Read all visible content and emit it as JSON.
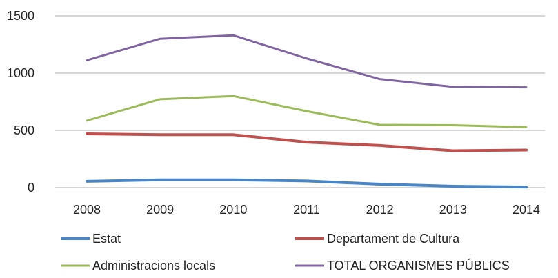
{
  "chart_data": {
    "type": "line",
    "categories": [
      "2008",
      "2009",
      "2010",
      "2011",
      "2012",
      "2013",
      "2014"
    ],
    "ylim": [
      0,
      1500
    ],
    "yticks": [
      "0",
      "500",
      "1000",
      "1500"
    ],
    "grid": true,
    "legend_position": "bottom",
    "series": [
      {
        "name": "Estat",
        "color": "#4a86c5",
        "values": [
          55,
          68,
          68,
          58,
          30,
          12,
          5
        ]
      },
      {
        "name": "Departament de Cultura",
        "color": "#c0504d",
        "values": [
          470,
          462,
          462,
          397,
          368,
          322,
          328
        ]
      },
      {
        "name": "Administracions locals",
        "color": "#9bbb59",
        "values": [
          585,
          772,
          800,
          668,
          548,
          545,
          528
        ]
      },
      {
        "name": "TOTAL ORGANISMES PÚBLICS",
        "color": "#8064a2",
        "values": [
          1112,
          1300,
          1330,
          1128,
          948,
          880,
          876
        ]
      }
    ]
  }
}
